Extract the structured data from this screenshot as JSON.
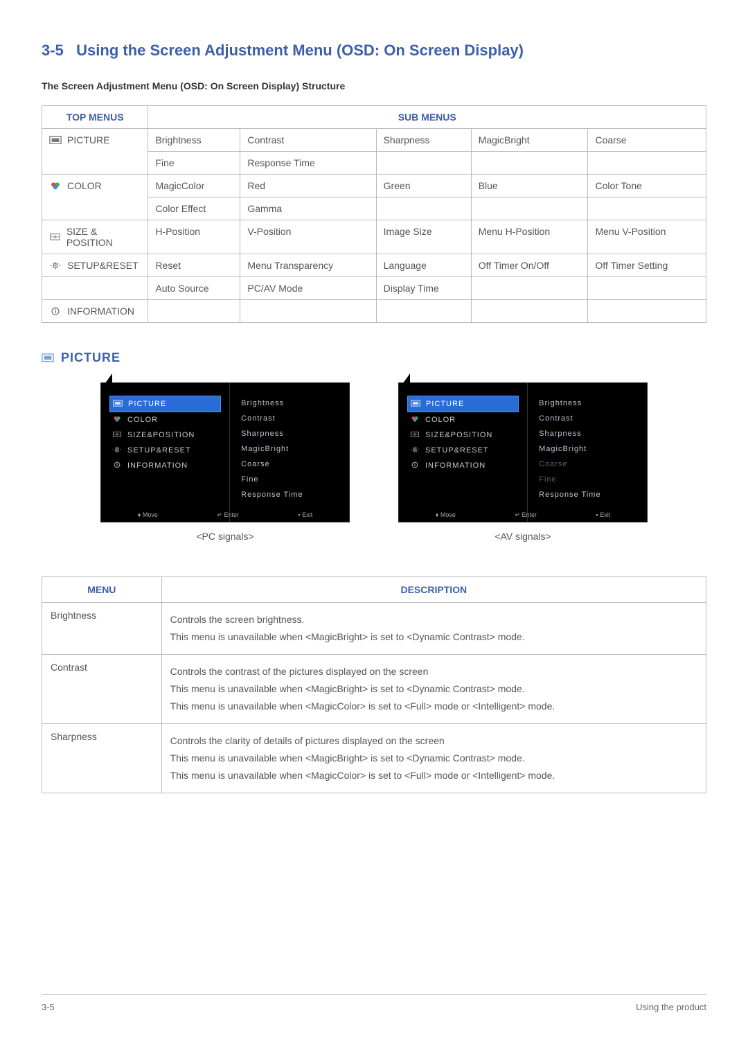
{
  "section": {
    "number": "3-5",
    "title": "Using the Screen Adjustment Menu (OSD: On Screen Display)"
  },
  "subtitle": "The Screen Adjustment Menu (OSD: On Screen Display) Structure",
  "colors": {
    "accent": "#3b5fa8",
    "border": "#bbbbbb",
    "text": "#555555",
    "osd_bg": "#000000",
    "osd_selected": "#2a6cd6",
    "osd_text": "#c7cbd4",
    "osd_dim": "#5a6575"
  },
  "struct_table": {
    "headers": {
      "top": "TOP MENUS",
      "sub": "SUB MENUS"
    },
    "rows": [
      {
        "top": "PICTURE",
        "icon": "picture-icon",
        "cells": [
          [
            "Brightness",
            "Contrast",
            "Sharpness",
            "MagicBright",
            "Coarse"
          ],
          [
            "Fine",
            "Response Time",
            "",
            "",
            ""
          ]
        ]
      },
      {
        "top": "COLOR",
        "icon": "color-icon",
        "cells": [
          [
            "MagicColor",
            "Red",
            "Green",
            "Blue",
            "Color Tone"
          ],
          [
            "Color Effect",
            "Gamma",
            "",
            "",
            ""
          ]
        ]
      },
      {
        "top": "SIZE & POSITION",
        "icon": "size-icon",
        "cells": [
          [
            "H-Position",
            "V-Position",
            "Image Size",
            "Menu H-Position",
            "Menu V-Position"
          ]
        ]
      },
      {
        "top": "SETUP&RESET",
        "icon": "setup-icon",
        "cells": [
          [
            "Reset",
            "Menu Transparency",
            "Language",
            "Off Timer On/Off",
            "Off Timer Setting"
          ],
          [
            "Auto Source",
            "PC/AV Mode",
            "Display Time",
            "",
            ""
          ]
        ],
        "split_second_row": true
      },
      {
        "top": "INFORMATION",
        "icon": "info-icon",
        "cells": [
          [
            "",
            "",
            "",
            "",
            ""
          ]
        ]
      }
    ]
  },
  "picture_heading": "PICTURE",
  "osd": {
    "left_items": [
      {
        "label": "PICTURE",
        "icon": "picture-icon",
        "selected": true
      },
      {
        "label": "COLOR",
        "icon": "color-icon"
      },
      {
        "label": "SIZE&POSITION",
        "icon": "size-icon"
      },
      {
        "label": "SETUP&RESET",
        "icon": "setup-icon"
      },
      {
        "label": "INFORMATION",
        "icon": "info-icon"
      }
    ],
    "right_items": [
      "Brightness",
      "Contrast",
      "Sharpness",
      "MagicBright",
      "Coarse",
      "Fine",
      "Response Time"
    ],
    "footer": {
      "move": "Move",
      "enter": "Enter",
      "exit": "Exit"
    },
    "captions": {
      "pc": "<PC signals>",
      "av": "<AV signals>"
    },
    "av_dimmed": [
      "Coarse",
      "Fine"
    ]
  },
  "desc_table": {
    "headers": {
      "menu": "MENU",
      "desc": "DESCRIPTION"
    },
    "rows": [
      {
        "menu": "Brightness",
        "lines": [
          "Controls the screen brightness.",
          "This menu is unavailable when <MagicBright> is set to <Dynamic Contrast> mode."
        ]
      },
      {
        "menu": "Contrast",
        "lines": [
          "Controls the contrast of the pictures displayed on the screen",
          "This menu is unavailable when <MagicBright> is set to <Dynamic Contrast> mode.",
          "This menu is unavailable when <MagicColor> is set to <Full> mode or <Intelligent> mode."
        ]
      },
      {
        "menu": "Sharpness",
        "lines": [
          "Controls the clarity of details of pictures displayed on the screen",
          "This menu is unavailable when <MagicBright> is set to <Dynamic Contrast> mode.",
          "This menu is unavailable when <MagicColor> is set to <Full> mode or <Intelligent> mode."
        ]
      }
    ]
  },
  "footer": {
    "left": "3-5",
    "right": "Using the product"
  }
}
